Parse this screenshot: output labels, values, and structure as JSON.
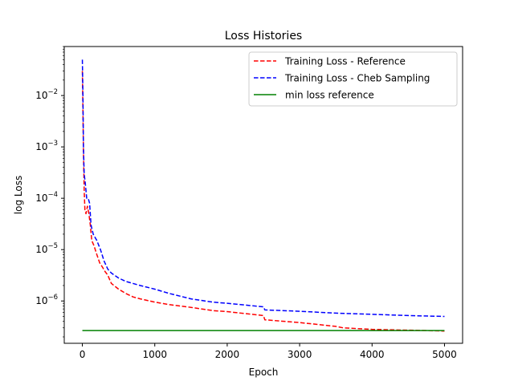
{
  "chart_data": {
    "type": "line",
    "title": "Loss Histories",
    "xlabel": "Epoch",
    "ylabel": "log Loss",
    "yscale": "log",
    "xlim": [
      -250,
      5250
    ],
    "ylim": [
      1.5e-07,
      0.09
    ],
    "x_ticks": [
      0,
      1000,
      2000,
      3000,
      4000,
      5000
    ],
    "x_tick_labels": [
      "0",
      "1000",
      "2000",
      "3000",
      "4000",
      "5000"
    ],
    "y_ticks": [
      1e-06,
      1e-05,
      0.0001,
      0.001,
      0.01
    ],
    "y_tick_labels": [
      {
        "base": "10",
        "exp": "−6"
      },
      {
        "base": "10",
        "exp": "−5"
      },
      {
        "base": "10",
        "exp": "−4"
      },
      {
        "base": "10",
        "exp": "−3"
      },
      {
        "base": "10",
        "exp": "−2"
      }
    ],
    "grid": false,
    "legend_position": "top-right",
    "series": [
      {
        "name": "Training Loss - Reference",
        "color": "#ff0000",
        "style": "dashed",
        "points": [
          [
            0,
            0.03
          ],
          [
            8,
            0.005
          ],
          [
            15,
            0.0008
          ],
          [
            25,
            0.00015
          ],
          [
            35,
            6e-05
          ],
          [
            50,
            5e-05
          ],
          [
            70,
            7e-05
          ],
          [
            90,
            5e-05
          ],
          [
            110,
            3e-05
          ],
          [
            130,
            1.5e-05
          ],
          [
            160,
            1.2e-05
          ],
          [
            200,
            8e-06
          ],
          [
            240,
            5.5e-06
          ],
          [
            280,
            4.5e-06
          ],
          [
            310,
            3.8e-06
          ],
          [
            350,
            3.2e-06
          ],
          [
            400,
            2.2e-06
          ],
          [
            500,
            1.7e-06
          ],
          [
            600,
            1.4e-06
          ],
          [
            700,
            1.2e-06
          ],
          [
            800,
            1.1e-06
          ],
          [
            1000,
            9.5e-07
          ],
          [
            1200,
            8.5e-07
          ],
          [
            1500,
            7.5e-07
          ],
          [
            1800,
            6.5e-07
          ],
          [
            2000,
            6.2e-07
          ],
          [
            2500,
            5.2e-07
          ],
          [
            2520,
            4.3e-07
          ],
          [
            3000,
            3.8e-07
          ],
          [
            3500,
            3.2e-07
          ],
          [
            3600,
            3e-07
          ],
          [
            4000,
            2.8e-07
          ],
          [
            4500,
            2.7e-07
          ],
          [
            5000,
            2.6e-07
          ]
        ]
      },
      {
        "name": "Training Loss - Cheb Sampling",
        "color": "#0000ff",
        "style": "dashed",
        "points": [
          [
            0,
            0.05
          ],
          [
            8,
            0.01
          ],
          [
            15,
            0.001
          ],
          [
            25,
            0.0003
          ],
          [
            40,
            0.0002
          ],
          [
            60,
            0.0001
          ],
          [
            80,
            0.0001
          ],
          [
            100,
            8e-05
          ],
          [
            120,
            3e-05
          ],
          [
            150,
            2e-05
          ],
          [
            200,
            1.5e-05
          ],
          [
            250,
            1e-05
          ],
          [
            300,
            6e-06
          ],
          [
            350,
            4.2e-06
          ],
          [
            400,
            3.5e-06
          ],
          [
            500,
            2.8e-06
          ],
          [
            600,
            2.4e-06
          ],
          [
            800,
            2e-06
          ],
          [
            1000,
            1.7e-06
          ],
          [
            1200,
            1.4e-06
          ],
          [
            1500,
            1.1e-06
          ],
          [
            1800,
            9.5e-07
          ],
          [
            2000,
            9e-07
          ],
          [
            2500,
            7.7e-07
          ],
          [
            2520,
            6.7e-07
          ],
          [
            3000,
            6.3e-07
          ],
          [
            3500,
            5.8e-07
          ],
          [
            4000,
            5.5e-07
          ],
          [
            4500,
            5.2e-07
          ],
          [
            5000,
            5e-07
          ]
        ]
      },
      {
        "name": "min loss reference",
        "color": "#008000",
        "style": "solid",
        "points": [
          [
            0,
            2.65e-07
          ],
          [
            5000,
            2.65e-07
          ]
        ]
      }
    ]
  }
}
